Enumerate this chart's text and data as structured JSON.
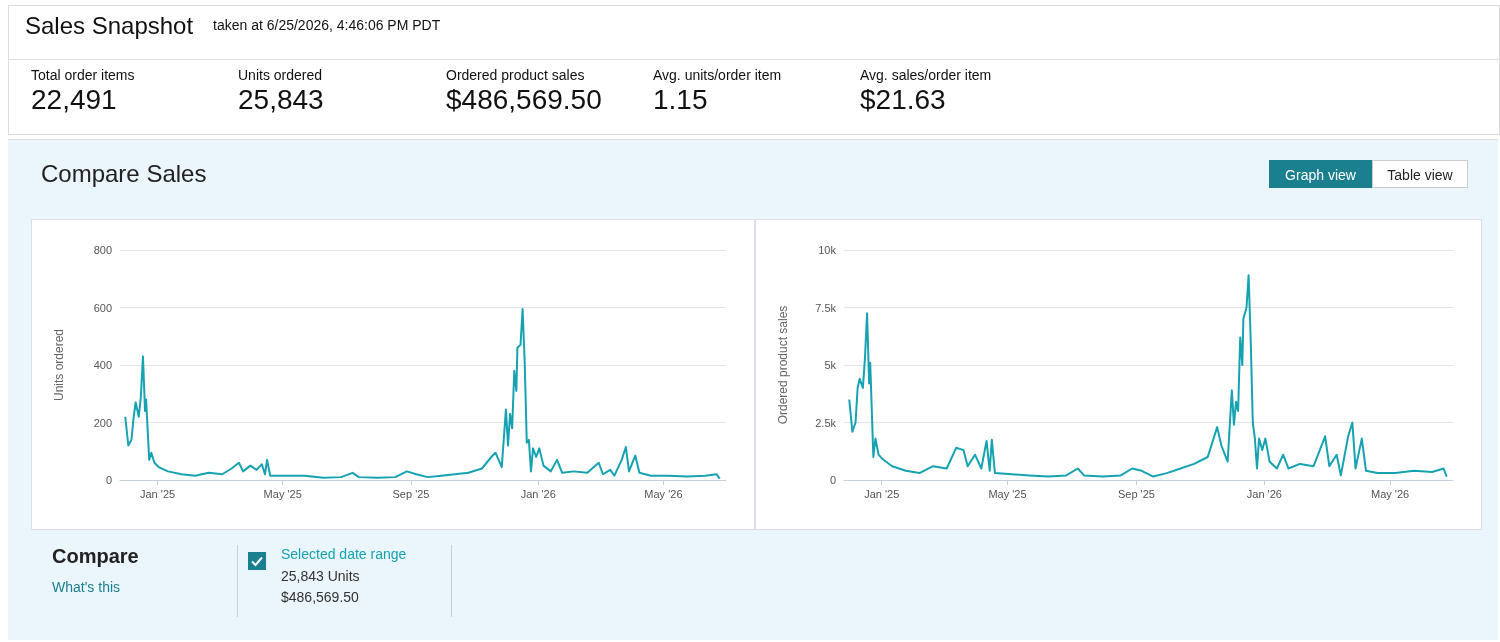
{
  "chart_data": [
    {
      "type": "other",
      "title": "Sales Snapshot",
      "subtitle": "taken at 6/25/2026, 4:46:06 PM PDT",
      "annotations": [
        "Total order items",
        "22,491",
        "Units ordered",
        "25,843",
        "Ordered product sales",
        "$486,569.50",
        "Avg. units/order item",
        "1.15",
        "Avg. sales/order item",
        "$21.63"
      ]
    },
    {
      "type": "other",
      "title": "Compare Sales",
      "annotations": [
        "Graph view",
        "Table view"
      ]
    },
    {
      "type": "line",
      "ylabel": "Units ordered",
      "grid": "y",
      "marker": "none",
      "line_style": "solid",
      "xlim": [
        "2024-11-26",
        "2026-06-30"
      ],
      "xticks": [
        {
          "value": "2025-01-01",
          "label": "Jan '25"
        },
        {
          "value": "2025-05-01",
          "label": "May '25"
        },
        {
          "value": "2025-09-01",
          "label": "Sep '25"
        },
        {
          "value": "2026-01-01",
          "label": "Jan '26"
        },
        {
          "value": "2026-05-01",
          "label": "May '26"
        }
      ],
      "ylim": [
        0,
        800
      ],
      "yticks": [
        0,
        200,
        400,
        600,
        800
      ],
      "x": [
        "2024-12-01",
        "2024-12-04",
        "2024-12-07",
        "2024-12-09",
        "2024-12-11",
        "2024-12-14",
        "2024-12-16",
        "2024-12-18",
        "2024-12-20",
        "2024-12-21",
        "2024-12-24",
        "2024-12-26",
        "2024-12-29",
        "2025-01-02",
        "2025-01-11",
        "2025-01-24",
        "2025-02-06",
        "2025-02-19",
        "2025-03-04",
        "2025-03-13",
        "2025-03-20",
        "2025-03-24",
        "2025-03-31",
        "2025-04-06",
        "2025-04-11",
        "2025-04-14",
        "2025-04-16",
        "2025-04-19",
        "2025-05-05",
        "2025-05-22",
        "2025-06-09",
        "2025-06-26",
        "2025-07-07",
        "2025-07-13",
        "2025-07-31",
        "2025-08-17",
        "2025-08-28",
        "2025-09-06",
        "2025-09-17",
        "2025-09-30",
        "2025-10-13",
        "2025-10-26",
        "2025-11-08",
        "2025-11-17",
        "2025-11-21",
        "2025-11-27",
        "2025-12-01",
        "2025-12-03",
        "2025-12-05",
        "2025-12-07",
        "2025-12-09",
        "2025-12-11",
        "2025-12-12",
        "2025-12-15",
        "2025-12-17",
        "2025-12-19",
        "2025-12-21",
        "2025-12-23",
        "2025-12-25",
        "2025-12-27",
        "2025-12-30",
        "2026-01-02",
        "2026-01-06",
        "2026-01-13",
        "2026-01-19",
        "2026-01-24",
        "2026-02-04",
        "2026-02-17",
        "2026-02-28",
        "2026-03-04",
        "2026-03-11",
        "2026-03-15",
        "2026-03-22",
        "2026-03-26",
        "2026-03-29",
        "2026-04-04",
        "2026-04-08",
        "2026-04-19",
        "2026-05-06",
        "2026-05-24",
        "2026-06-10",
        "2026-06-21",
        "2026-06-24"
      ],
      "series": [
        {
          "color": "#17a2b2",
          "values": [
            220,
            120,
            140,
            215,
            270,
            220,
            290,
            430,
            240,
            280,
            70,
            95,
            60,
            45,
            30,
            20,
            15,
            25,
            20,
            40,
            60,
            30,
            50,
            35,
            55,
            20,
            70,
            15,
            15,
            15,
            8,
            10,
            25,
            10,
            8,
            10,
            30,
            20,
            10,
            15,
            20,
            25,
            40,
            80,
            95,
            45,
            245,
            120,
            230,
            180,
            380,
            310,
            460,
            470,
            595,
            410,
            130,
            140,
            30,
            110,
            80,
            110,
            50,
            30,
            70,
            25,
            30,
            25,
            60,
            20,
            35,
            15,
            70,
            115,
            30,
            85,
            25,
            15,
            15,
            12,
            15,
            20,
            5
          ]
        }
      ]
    },
    {
      "type": "line",
      "ylabel": "Ordered product sales",
      "grid": "y",
      "marker": "none",
      "line_style": "solid",
      "xlim": [
        "2024-11-26",
        "2026-06-30"
      ],
      "xticks": [
        {
          "value": "2025-01-01",
          "label": "Jan '25"
        },
        {
          "value": "2025-05-01",
          "label": "May '25"
        },
        {
          "value": "2025-09-01",
          "label": "Sep '25"
        },
        {
          "value": "2026-01-01",
          "label": "Jan '26"
        },
        {
          "value": "2026-05-01",
          "label": "May '26"
        }
      ],
      "ylim": [
        0,
        10000
      ],
      "yticks": [
        0,
        {
          "value": 2500,
          "label": "2.5k"
        },
        {
          "value": 5000,
          "label": "5k"
        },
        {
          "value": 7500,
          "label": "7.5k"
        },
        {
          "value": 10000,
          "label": "10k"
        }
      ],
      "x": [
        "2024-12-01",
        "2024-12-04",
        "2024-12-07",
        "2024-12-09",
        "2024-12-11",
        "2024-12-14",
        "2024-12-16",
        "2024-12-18",
        "2024-12-20",
        "2024-12-21",
        "2024-12-24",
        "2024-12-26",
        "2024-12-29",
        "2025-01-02",
        "2025-01-11",
        "2025-01-24",
        "2025-02-06",
        "2025-02-19",
        "2025-03-04",
        "2025-03-13",
        "2025-03-20",
        "2025-03-24",
        "2025-03-31",
        "2025-04-06",
        "2025-04-11",
        "2025-04-14",
        "2025-04-16",
        "2025-04-19",
        "2025-05-05",
        "2025-05-22",
        "2025-06-09",
        "2025-06-26",
        "2025-07-07",
        "2025-07-13",
        "2025-07-31",
        "2025-08-17",
        "2025-08-28",
        "2025-09-06",
        "2025-09-17",
        "2025-09-30",
        "2025-10-13",
        "2025-10-26",
        "2025-11-08",
        "2025-11-17",
        "2025-11-21",
        "2025-11-27",
        "2025-12-01",
        "2025-12-03",
        "2025-12-05",
        "2025-12-07",
        "2025-12-09",
        "2025-12-11",
        "2025-12-12",
        "2025-12-15",
        "2025-12-17",
        "2025-12-19",
        "2025-12-21",
        "2025-12-23",
        "2025-12-25",
        "2025-12-27",
        "2025-12-30",
        "2026-01-02",
        "2026-01-06",
        "2026-01-13",
        "2026-01-19",
        "2026-01-24",
        "2026-02-04",
        "2026-02-17",
        "2026-02-28",
        "2026-03-04",
        "2026-03-11",
        "2026-03-15",
        "2026-03-22",
        "2026-03-26",
        "2026-03-29",
        "2026-04-04",
        "2026-04-08",
        "2026-04-19",
        "2026-05-06",
        "2026-05-24",
        "2026-06-10",
        "2026-06-21",
        "2026-06-24"
      ],
      "series": [
        {
          "color": "#17a2b2",
          "values": [
            3500,
            2100,
            2500,
            4000,
            4400,
            4000,
            5300,
            7250,
            4200,
            5100,
            1000,
            1800,
            1100,
            900,
            600,
            400,
            300,
            600,
            500,
            1400,
            1300,
            600,
            1100,
            500,
            1700,
            400,
            1750,
            300,
            250,
            200,
            150,
            200,
            500,
            200,
            150,
            200,
            500,
            400,
            150,
            300,
            500,
            700,
            1000,
            2300,
            1500,
            800,
            3900,
            2400,
            3400,
            3000,
            6200,
            5000,
            7000,
            7500,
            8900,
            6100,
            2500,
            1800,
            500,
            1800,
            1300,
            1800,
            800,
            500,
            1100,
            500,
            700,
            600,
            1900,
            600,
            1100,
            200,
            1900,
            2500,
            500,
            1800,
            400,
            300,
            300,
            400,
            350,
            500,
            150
          ]
        }
      ]
    },
    {
      "type": "other",
      "title": "Compare",
      "annotations": [
        "What's this",
        "Selected date range",
        "25,843 Units",
        "$486,569.50"
      ]
    }
  ]
}
